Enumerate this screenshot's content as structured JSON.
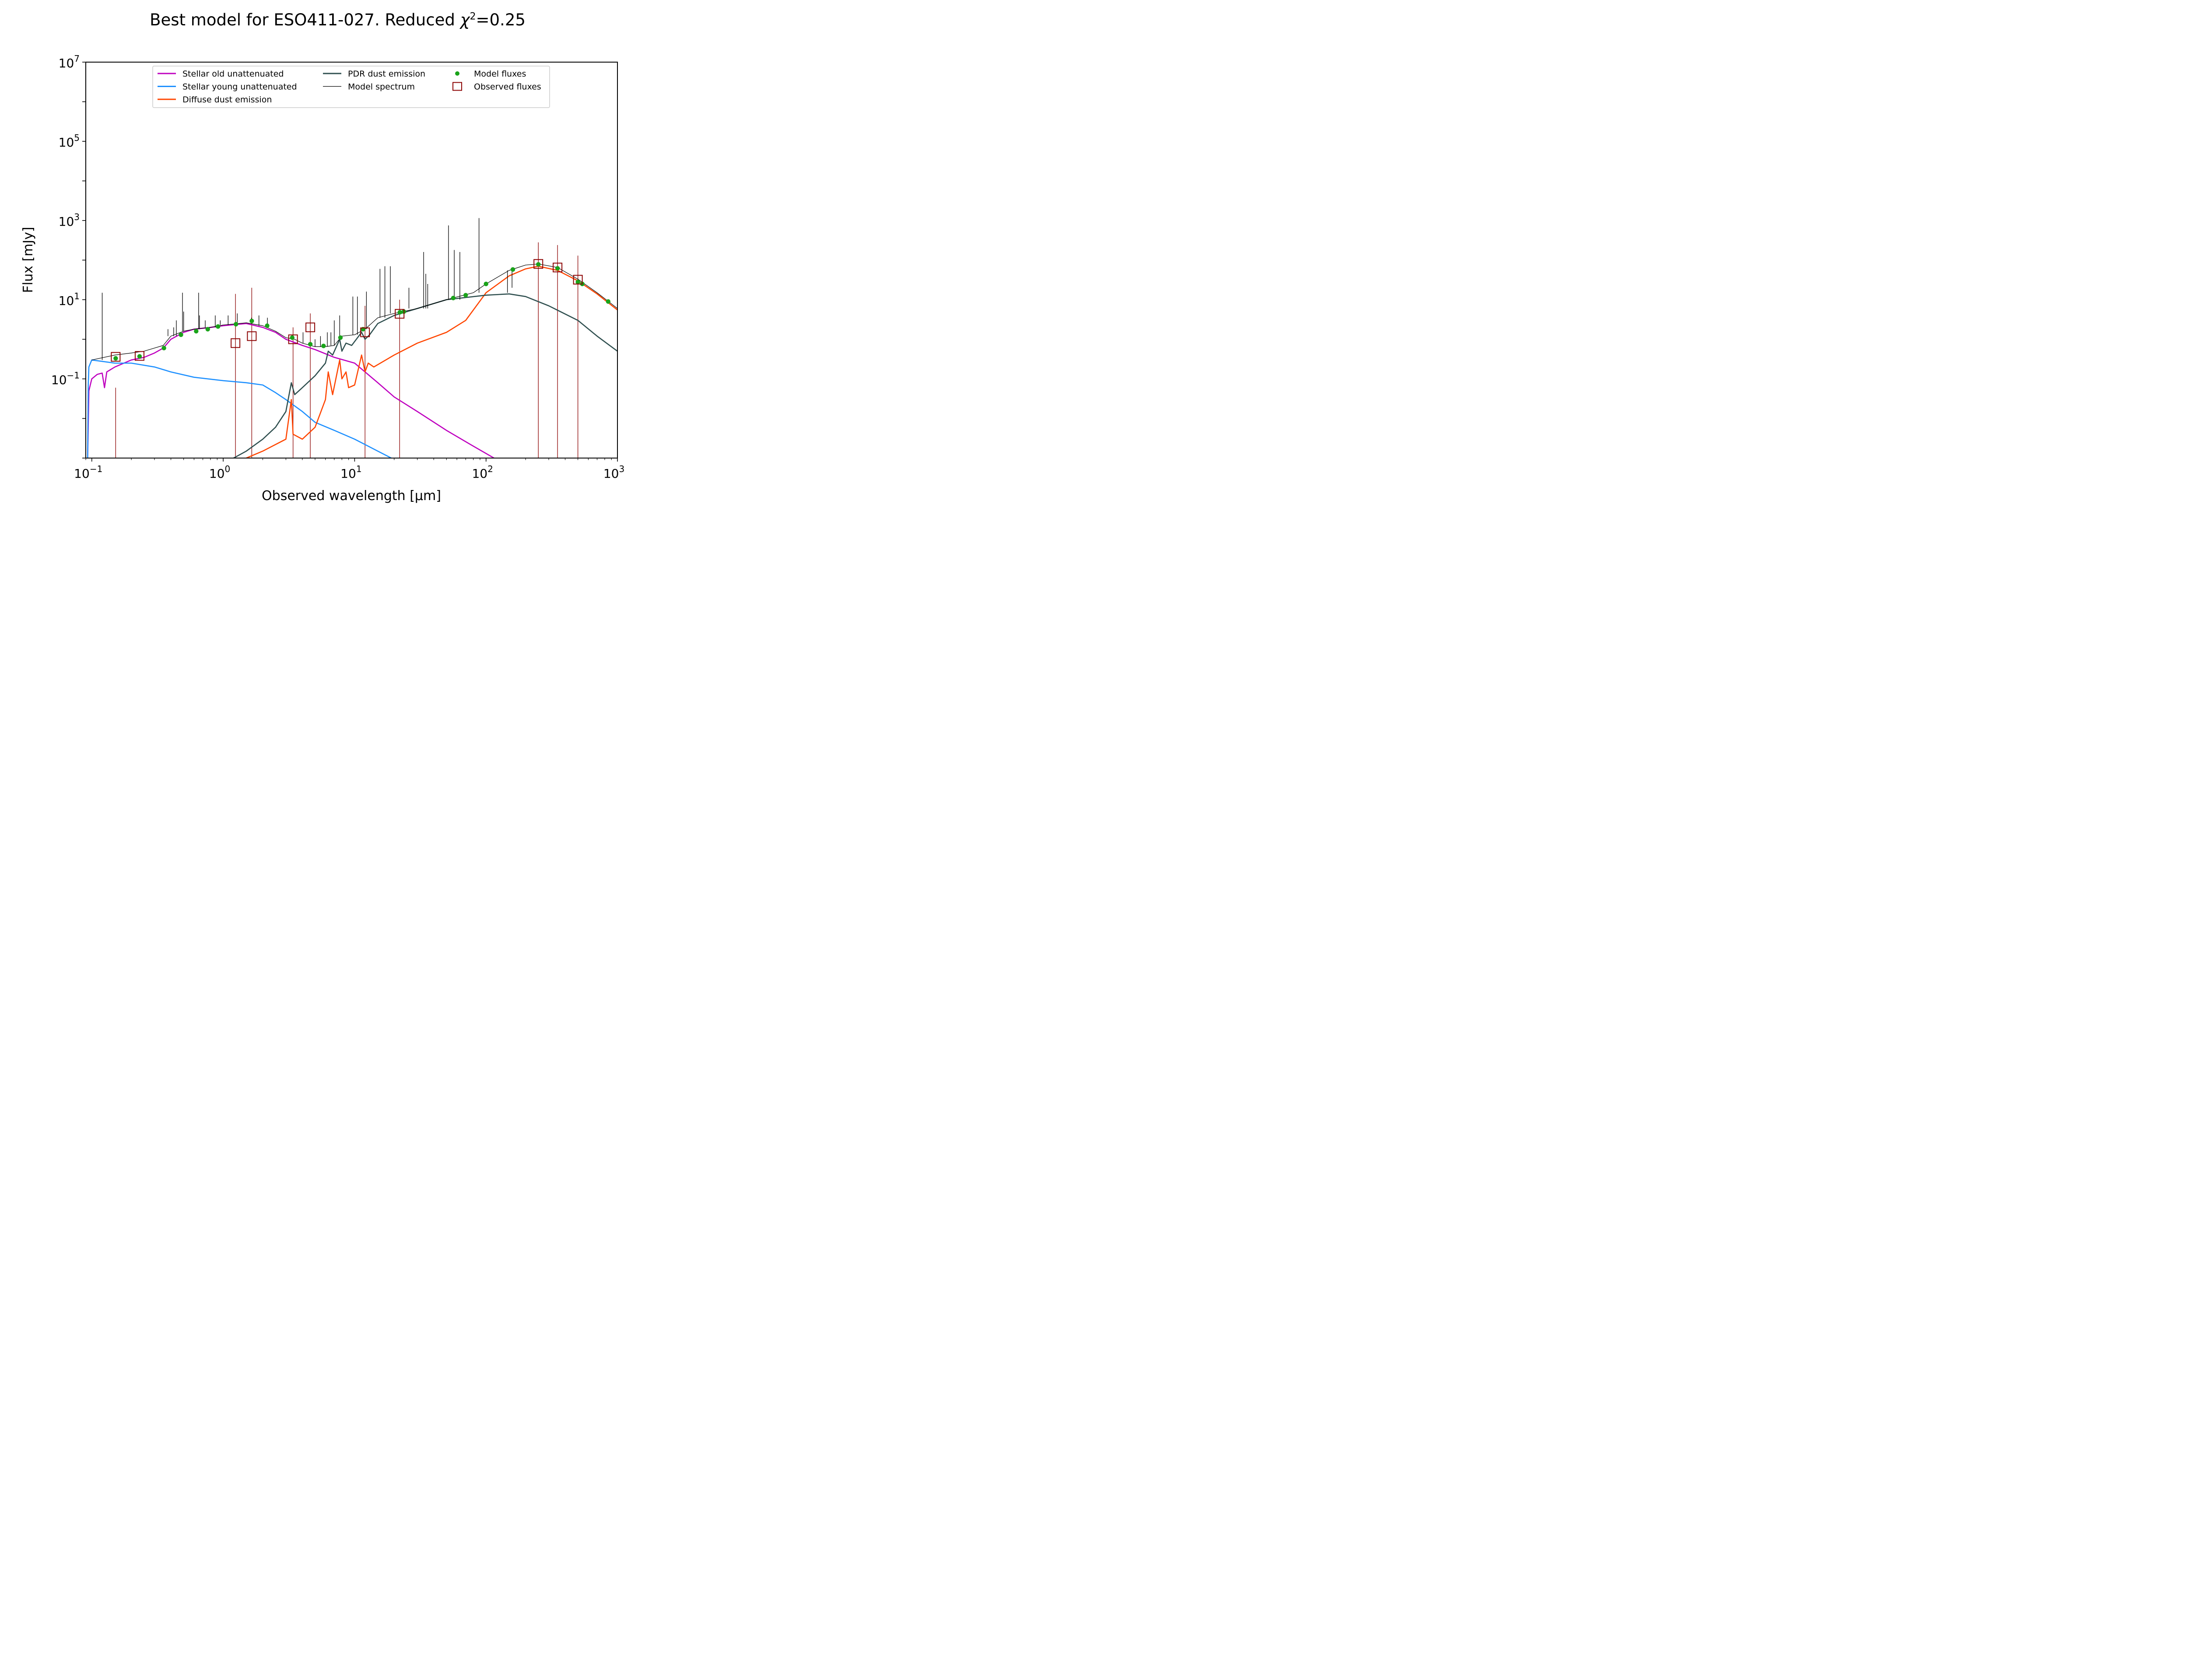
{
  "figure": {
    "title_main": "Best model for ESO411-027. Reduced ",
    "title_chi": "χ",
    "title_sup": "2",
    "title_val": "=0.25"
  },
  "chart_data": {
    "type": "line",
    "xscale": "log",
    "yscale": "log",
    "xlim": [
      0.09,
      1000
    ],
    "ylim": [
      0.001,
      10000000
    ],
    "xlabel": "Observed wavelength [μm]",
    "ylabel": "Flux [mJy]",
    "xticks": [
      {
        "value": 0.1,
        "base": "10",
        "exp": "−1"
      },
      {
        "value": 1,
        "base": "10",
        "exp": "0"
      },
      {
        "value": 10,
        "base": "10",
        "exp": "1"
      },
      {
        "value": 100,
        "base": "10",
        "exp": "2"
      },
      {
        "value": 1000,
        "base": "10",
        "exp": "3"
      }
    ],
    "yticks": [
      {
        "value": 0.1,
        "base": "10",
        "exp": "−1"
      },
      {
        "value": 10,
        "base": "10",
        "exp": "1"
      },
      {
        "value": 1000,
        "base": "10",
        "exp": "3"
      },
      {
        "value": 100000,
        "base": "10",
        "exp": "5"
      },
      {
        "value": 10000000,
        "base": "10",
        "exp": "7"
      }
    ],
    "legend_position": "top-center",
    "legend": [
      {
        "label": "Stellar old unattenuated",
        "color": "#BF00BF",
        "kind": "line"
      },
      {
        "label": "Stellar young unattenuated",
        "color": "#1E90FF",
        "kind": "line"
      },
      {
        "label": "Diffuse dust emission",
        "color": "#FF4500",
        "kind": "line"
      },
      {
        "label": "PDR dust emission",
        "color": "#2F4F4F",
        "kind": "line"
      },
      {
        "label": "Model spectrum",
        "color": "#000000",
        "kind": "thinline"
      },
      {
        "label": "Model fluxes",
        "color": "#1AA31A",
        "kind": "dot"
      },
      {
        "label": "Observed fluxes",
        "color": "#8B0000",
        "kind": "square"
      }
    ],
    "series": [
      {
        "name": "Stellar old unattenuated",
        "color": "#BF00BF",
        "points": [
          [
            0.093,
            0.001
          ],
          [
            0.095,
            0.05
          ],
          [
            0.1,
            0.1
          ],
          [
            0.11,
            0.13
          ],
          [
            0.12,
            0.14
          ],
          [
            0.125,
            0.06
          ],
          [
            0.13,
            0.15
          ],
          [
            0.15,
            0.2
          ],
          [
            0.2,
            0.3
          ],
          [
            0.25,
            0.35
          ],
          [
            0.3,
            0.45
          ],
          [
            0.35,
            0.6
          ],
          [
            0.4,
            1.0
          ],
          [
            0.5,
            1.5
          ],
          [
            0.6,
            1.8
          ],
          [
            0.8,
            2.0
          ],
          [
            1.0,
            2.2
          ],
          [
            1.5,
            2.5
          ],
          [
            2.0,
            2.0
          ],
          [
            2.5,
            1.5
          ],
          [
            3.0,
            1.0
          ],
          [
            4.0,
            0.7
          ],
          [
            5.0,
            0.55
          ],
          [
            7.0,
            0.35
          ],
          [
            10.0,
            0.25
          ],
          [
            15.0,
            0.08
          ],
          [
            20.0,
            0.035
          ],
          [
            30.0,
            0.015
          ],
          [
            50.0,
            0.005
          ],
          [
            80.0,
            0.002
          ],
          [
            115.0,
            0.001
          ]
        ]
      },
      {
        "name": "Stellar young unattenuated",
        "color": "#1E90FF",
        "points": [
          [
            0.093,
            0.001
          ],
          [
            0.094,
            0.07
          ],
          [
            0.095,
            0.2
          ],
          [
            0.1,
            0.3
          ],
          [
            0.15,
            0.25
          ],
          [
            0.2,
            0.25
          ],
          [
            0.3,
            0.2
          ],
          [
            0.4,
            0.15
          ],
          [
            0.6,
            0.11
          ],
          [
            1.0,
            0.09
          ],
          [
            1.5,
            0.08
          ],
          [
            2.0,
            0.07
          ],
          [
            2.5,
            0.045
          ],
          [
            3.0,
            0.03
          ],
          [
            4.0,
            0.015
          ],
          [
            5.0,
            0.008
          ],
          [
            7.0,
            0.005
          ],
          [
            10.0,
            0.003
          ],
          [
            15.0,
            0.0015
          ],
          [
            19.0,
            0.001
          ]
        ]
      },
      {
        "name": "Diffuse dust emission",
        "color": "#FF4500",
        "points": [
          [
            1.5,
            0.001
          ],
          [
            2.0,
            0.0015
          ],
          [
            3.0,
            0.003
          ],
          [
            3.3,
            0.03
          ],
          [
            3.4,
            0.004
          ],
          [
            4.0,
            0.003
          ],
          [
            5.0,
            0.006
          ],
          [
            6.0,
            0.03
          ],
          [
            6.3,
            0.15
          ],
          [
            6.8,
            0.04
          ],
          [
            7.7,
            0.3
          ],
          [
            8.0,
            0.1
          ],
          [
            8.6,
            0.15
          ],
          [
            9.0,
            0.06
          ],
          [
            10.0,
            0.07
          ],
          [
            11.3,
            0.4
          ],
          [
            12.0,
            0.15
          ],
          [
            12.7,
            0.25
          ],
          [
            14.0,
            0.2
          ],
          [
            20.0,
            0.4
          ],
          [
            30.0,
            0.8
          ],
          [
            50.0,
            1.5
          ],
          [
            70.0,
            3.0
          ],
          [
            100.0,
            15.0
          ],
          [
            150.0,
            40.0
          ],
          [
            200.0,
            60.0
          ],
          [
            250.0,
            70.0
          ],
          [
            350.0,
            55.0
          ],
          [
            500.0,
            30.0
          ],
          [
            700.0,
            14.0
          ],
          [
            1000.0,
            5.5
          ]
        ]
      },
      {
        "name": "PDR dust emission",
        "color": "#2F4F4F",
        "points": [
          [
            1.2,
            0.001
          ],
          [
            1.5,
            0.0015
          ],
          [
            2.0,
            0.003
          ],
          [
            2.5,
            0.006
          ],
          [
            3.0,
            0.015
          ],
          [
            3.3,
            0.08
          ],
          [
            3.5,
            0.04
          ],
          [
            4.0,
            0.06
          ],
          [
            5.0,
            0.12
          ],
          [
            6.0,
            0.25
          ],
          [
            6.3,
            0.5
          ],
          [
            6.8,
            0.4
          ],
          [
            7.7,
            1.0
          ],
          [
            8.0,
            0.5
          ],
          [
            8.6,
            0.8
          ],
          [
            9.5,
            0.7
          ],
          [
            11.3,
            1.5
          ],
          [
            12.0,
            1.0
          ],
          [
            13.0,
            1.3
          ],
          [
            15.0,
            2.5
          ],
          [
            20.0,
            4.0
          ],
          [
            30.0,
            6.0
          ],
          [
            50.0,
            10.0
          ],
          [
            100.0,
            13.0
          ],
          [
            150.0,
            14.0
          ],
          [
            200.0,
            12.0
          ],
          [
            300.0,
            7.0
          ],
          [
            500.0,
            3.0
          ],
          [
            700.0,
            1.2
          ],
          [
            1000.0,
            0.5
          ]
        ]
      },
      {
        "name": "Model spectrum",
        "color": "#000000",
        "points": [
          [
            0.1,
            0.3
          ],
          [
            0.15,
            0.4
          ],
          [
            0.2,
            0.45
          ],
          [
            0.25,
            0.5
          ],
          [
            0.3,
            0.6
          ],
          [
            0.35,
            0.7
          ],
          [
            0.4,
            1.2
          ],
          [
            0.5,
            1.6
          ],
          [
            0.6,
            1.8
          ],
          [
            0.8,
            2.0
          ],
          [
            1.0,
            2.3
          ],
          [
            1.5,
            2.6
          ],
          [
            2.0,
            2.2
          ],
          [
            2.5,
            1.6
          ],
          [
            3.0,
            1.1
          ],
          [
            3.5,
            1.0
          ],
          [
            4.0,
            0.8
          ],
          [
            5.0,
            0.65
          ],
          [
            6.0,
            0.65
          ],
          [
            7.0,
            0.7
          ],
          [
            8.0,
            1.2
          ],
          [
            10.0,
            1.3
          ],
          [
            12.0,
            1.8
          ],
          [
            15.0,
            3.5
          ],
          [
            20.0,
            4.5
          ],
          [
            30.0,
            6.0
          ],
          [
            50.0,
            10.0
          ],
          [
            80.0,
            15.0
          ],
          [
            100.0,
            25.0
          ],
          [
            150.0,
            55.0
          ],
          [
            200.0,
            75.0
          ],
          [
            250.0,
            80.0
          ],
          [
            350.0,
            65.0
          ],
          [
            500.0,
            33.0
          ],
          [
            700.0,
            15.0
          ],
          [
            1000.0,
            6.0
          ]
        ],
        "lines": [
          [
            0.12,
            15
          ],
          [
            0.38,
            1.8
          ],
          [
            0.42,
            2.0
          ],
          [
            0.44,
            3.0
          ],
          [
            0.49,
            15
          ],
          [
            0.5,
            5.0
          ],
          [
            0.65,
            15
          ],
          [
            0.66,
            4.0
          ],
          [
            0.73,
            3.0
          ],
          [
            0.87,
            4.0
          ],
          [
            0.95,
            3.0
          ],
          [
            1.09,
            4.0
          ],
          [
            1.28,
            4.5
          ],
          [
            1.64,
            3.5
          ],
          [
            1.87,
            4.0
          ],
          [
            2.17,
            3.5
          ],
          [
            4.05,
            1.5
          ],
          [
            5.0,
            1.0
          ],
          [
            5.5,
            1.2
          ],
          [
            6.2,
            1.5
          ],
          [
            6.6,
            1.5
          ],
          [
            7.0,
            3.0
          ],
          [
            7.7,
            4.0
          ],
          [
            9.7,
            12
          ],
          [
            10.5,
            12
          ],
          [
            12.3,
            16
          ],
          [
            15.6,
            60
          ],
          [
            17.0,
            70
          ],
          [
            18.7,
            70
          ],
          [
            25.9,
            20
          ],
          [
            33.5,
            160
          ],
          [
            34.8,
            45
          ],
          [
            36.0,
            25
          ],
          [
            51.8,
            750
          ],
          [
            57.3,
            180
          ],
          [
            63.2,
            160
          ],
          [
            88.4,
            1150
          ],
          [
            145.5,
            15
          ],
          [
            157.7,
            20
          ]
        ]
      }
    ],
    "model_fluxes": [
      [
        0.152,
        0.33
      ],
      [
        0.231,
        0.37
      ],
      [
        0.354,
        0.6
      ],
      [
        0.477,
        1.3
      ],
      [
        0.623,
        1.6
      ],
      [
        0.763,
        1.8
      ],
      [
        0.913,
        2.1
      ],
      [
        1.25,
        2.4
      ],
      [
        1.65,
        2.9
      ],
      [
        2.16,
        2.2
      ],
      [
        3.35,
        1.1
      ],
      [
        4.6,
        0.75
      ],
      [
        5.8,
        0.68
      ],
      [
        7.8,
        1.1
      ],
      [
        11.6,
        1.8
      ],
      [
        22.1,
        4.8
      ],
      [
        23.7,
        5.0
      ],
      [
        56.3,
        11.0
      ],
      [
        70.0,
        13.0
      ],
      [
        100.0,
        25.0
      ],
      [
        160.0,
        58.0
      ],
      [
        250.0,
        78.0
      ],
      [
        350.0,
        62.0
      ],
      [
        500.0,
        28.0
      ],
      [
        540.0,
        25.0
      ],
      [
        850.0,
        9.0
      ]
    ],
    "observed_fluxes": [
      {
        "x": 0.152,
        "y": 0.36,
        "ylo": 0.001,
        "yhi": 0.06
      },
      {
        "x": 0.231,
        "y": 0.38,
        "ylo": 0.001,
        "yhi": 0.001
      },
      {
        "x": 1.24,
        "y": 0.8,
        "ylo": 0.001,
        "yhi": 14
      },
      {
        "x": 1.65,
        "y": 1.2,
        "ylo": 0.001,
        "yhi": 20
      },
      {
        "x": 3.4,
        "y": 1.0,
        "ylo": 0.001,
        "yhi": 2.0
      },
      {
        "x": 4.6,
        "y": 2.0,
        "ylo": 0.001,
        "yhi": 4.5
      },
      {
        "x": 12.0,
        "y": 1.5,
        "ylo": 0.001,
        "yhi": 7.0
      },
      {
        "x": 22.0,
        "y": 4.4,
        "ylo": 0.001,
        "yhi": 10.0
      },
      {
        "x": 250.0,
        "y": 80.0,
        "ylo": 0.001,
        "yhi": 280.0
      },
      {
        "x": 350.0,
        "y": 65.0,
        "ylo": 0.001,
        "yhi": 240.0
      },
      {
        "x": 500.0,
        "y": 32.0,
        "ylo": 0.001,
        "yhi": 130.0
      }
    ]
  }
}
